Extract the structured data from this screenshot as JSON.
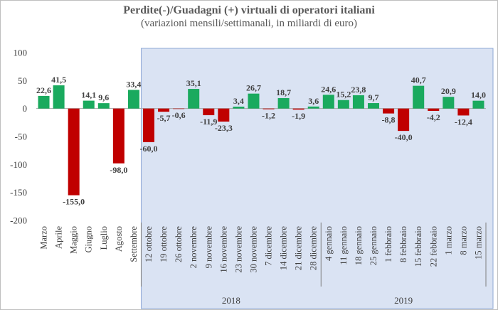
{
  "chart_data": {
    "type": "bar",
    "title": "Perdite(-)/Guadagni (+) virtuali di operatori italiani",
    "subtitle": "(variazioni mensili/settimanali, in miliardi di euro)",
    "ylim": [
      -200,
      100
    ],
    "yticks": [
      100,
      50,
      0,
      -50,
      -100,
      -150,
      -200
    ],
    "grid": false,
    "colors": {
      "positive": "#1aaa5e",
      "negative": "#c00000",
      "shade": "#dae3f3",
      "shade_border": "#8fa9d6"
    },
    "categories": [
      "Marzo",
      "Aprile",
      "Maggio",
      "Giugno",
      "Luglio",
      "Agosto",
      "Settembre",
      "12 ottobre",
      "19 ottobre",
      "26 ottobre",
      "2 novembre",
      "9 novembre",
      "16 novembre",
      "23 novembre",
      "30 novembre",
      "7 dicembre",
      "14 dicembre",
      "21 dicembre",
      "28 dicembre",
      "4 gennaio",
      "11 gennaio",
      "18 gennaio",
      "25 gennaio",
      "1 febbraio",
      "8 febbraio",
      "15 febbraio",
      "22 febbraio",
      "1 marzo",
      "8 marzo",
      "15 marzo"
    ],
    "values": [
      22.6,
      41.5,
      -155.0,
      14.1,
      9.6,
      -98.0,
      33.4,
      -60.0,
      -5.7,
      -0.6,
      35.1,
      -11.9,
      -23.3,
      3.4,
      26.7,
      -1.2,
      18.7,
      -1.9,
      3.6,
      24.6,
      15.2,
      23.8,
      9.7,
      -8.8,
      -40.0,
      40.7,
      -4.2,
      20.9,
      -12.4,
      14.0
    ],
    "data_labels": [
      "22,6",
      "41,5",
      "-155,0",
      "14,1",
      "9,6",
      "-98,0",
      "33,4",
      "-60,0",
      "-5,7",
      "-0,6",
      "35,1",
      "-11,9",
      "-23,3",
      "3,4",
      "26,7",
      "-1,2",
      "18,7",
      "-1,9",
      "3,6",
      "24,6",
      "15,2",
      "23,8",
      "9,7",
      "-8,8",
      "-40,0",
      "40,7",
      "-4,2",
      "20,9",
      "-12,4",
      "14,0"
    ],
    "groups": [
      {
        "label": "2018",
        "from": 7,
        "to": 18
      },
      {
        "label": "2019",
        "from": 19,
        "to": 29
      }
    ]
  }
}
